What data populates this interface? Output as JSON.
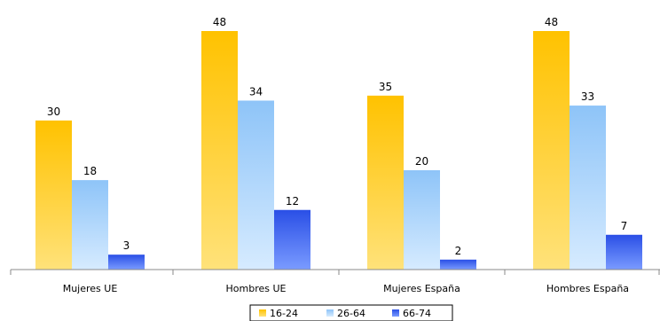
{
  "chart_data": {
    "type": "bar",
    "title": "",
    "xlabel": "",
    "ylabel": "",
    "categories": [
      "Mujeres UE",
      "Hombres UE",
      "Mujeres España",
      "Hombres España"
    ],
    "series": [
      {
        "name": "16-24",
        "values": [
          30,
          48,
          35,
          48
        ],
        "color": "#FFC800"
      },
      {
        "name": "26-64",
        "values": [
          18,
          34,
          20,
          33
        ],
        "color": "#99CCFF"
      },
      {
        "name": "66-74",
        "values": [
          3,
          12,
          2,
          7
        ],
        "color": "#3355EE"
      }
    ],
    "ylim": [
      0,
      48
    ],
    "grid": false,
    "legend": "bottom",
    "data_labels": true
  }
}
